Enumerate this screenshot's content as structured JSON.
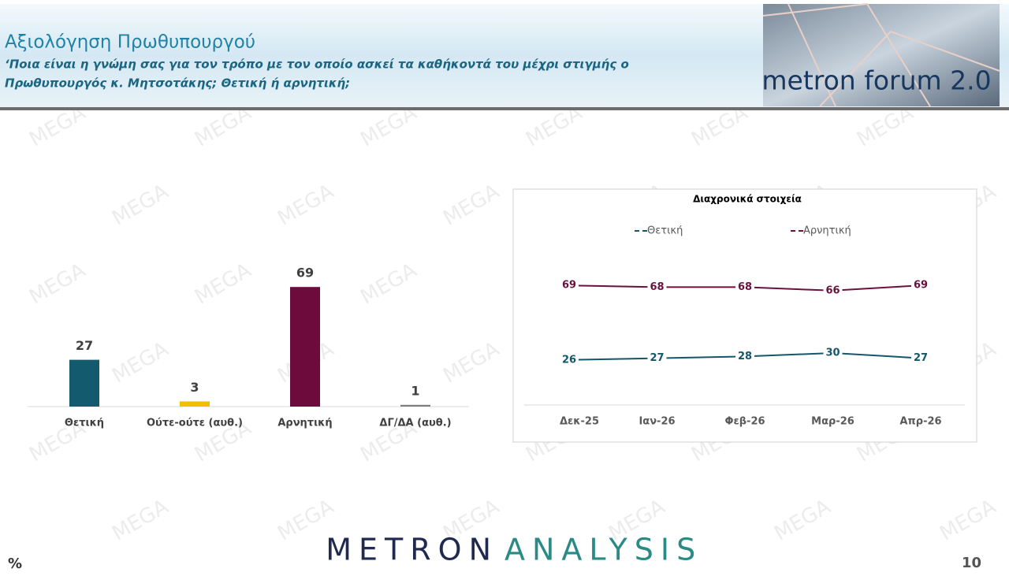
{
  "header": {
    "title": "Αξιολόγηση Πρωθυπουργού",
    "subtitle_lines": [
      "‘Ποια είναι η γνώμη σας για τον τρόπο με τον οποίο ασκεί τα καθήκοντά του μέχρι στιγμής ο",
      "Πρωθυπουργός κ. Μητσοτάκης; Θετική ή αρνητική;"
    ]
  },
  "logo": "metron forum 2.0",
  "watermark": "MEGA",
  "footer": {
    "brand_left": "METRON",
    "brand_right": "ANALYSIS",
    "unit": "%",
    "page": "10"
  },
  "chart_data": [
    {
      "type": "bar",
      "categories": [
        "Θετική",
        "Ούτε-ούτε (αυθ.)",
        "Αρνητική",
        "ΔΓ/ΔΑ (αυθ.)"
      ],
      "values": [
        27,
        3,
        69,
        1
      ],
      "colors": [
        "#135a6e",
        "#f2be00",
        "#6d0c3c",
        "#7f7f7f"
      ]
    },
    {
      "type": "line",
      "title": "Διαχρονικά στοιχεία",
      "categories": [
        "Δεκ-25",
        "Ιαν-26",
        "Φεβ-26",
        "Μαρ-26",
        "Απρ-26"
      ],
      "legend": "top",
      "series": [
        {
          "name": "Θετική",
          "color": "#14566a",
          "values": [
            26,
            27,
            28,
            30,
            27
          ]
        },
        {
          "name": "Αρνητική",
          "color": "#6b1140",
          "values": [
            69,
            68,
            68,
            66,
            69
          ]
        }
      ]
    }
  ]
}
